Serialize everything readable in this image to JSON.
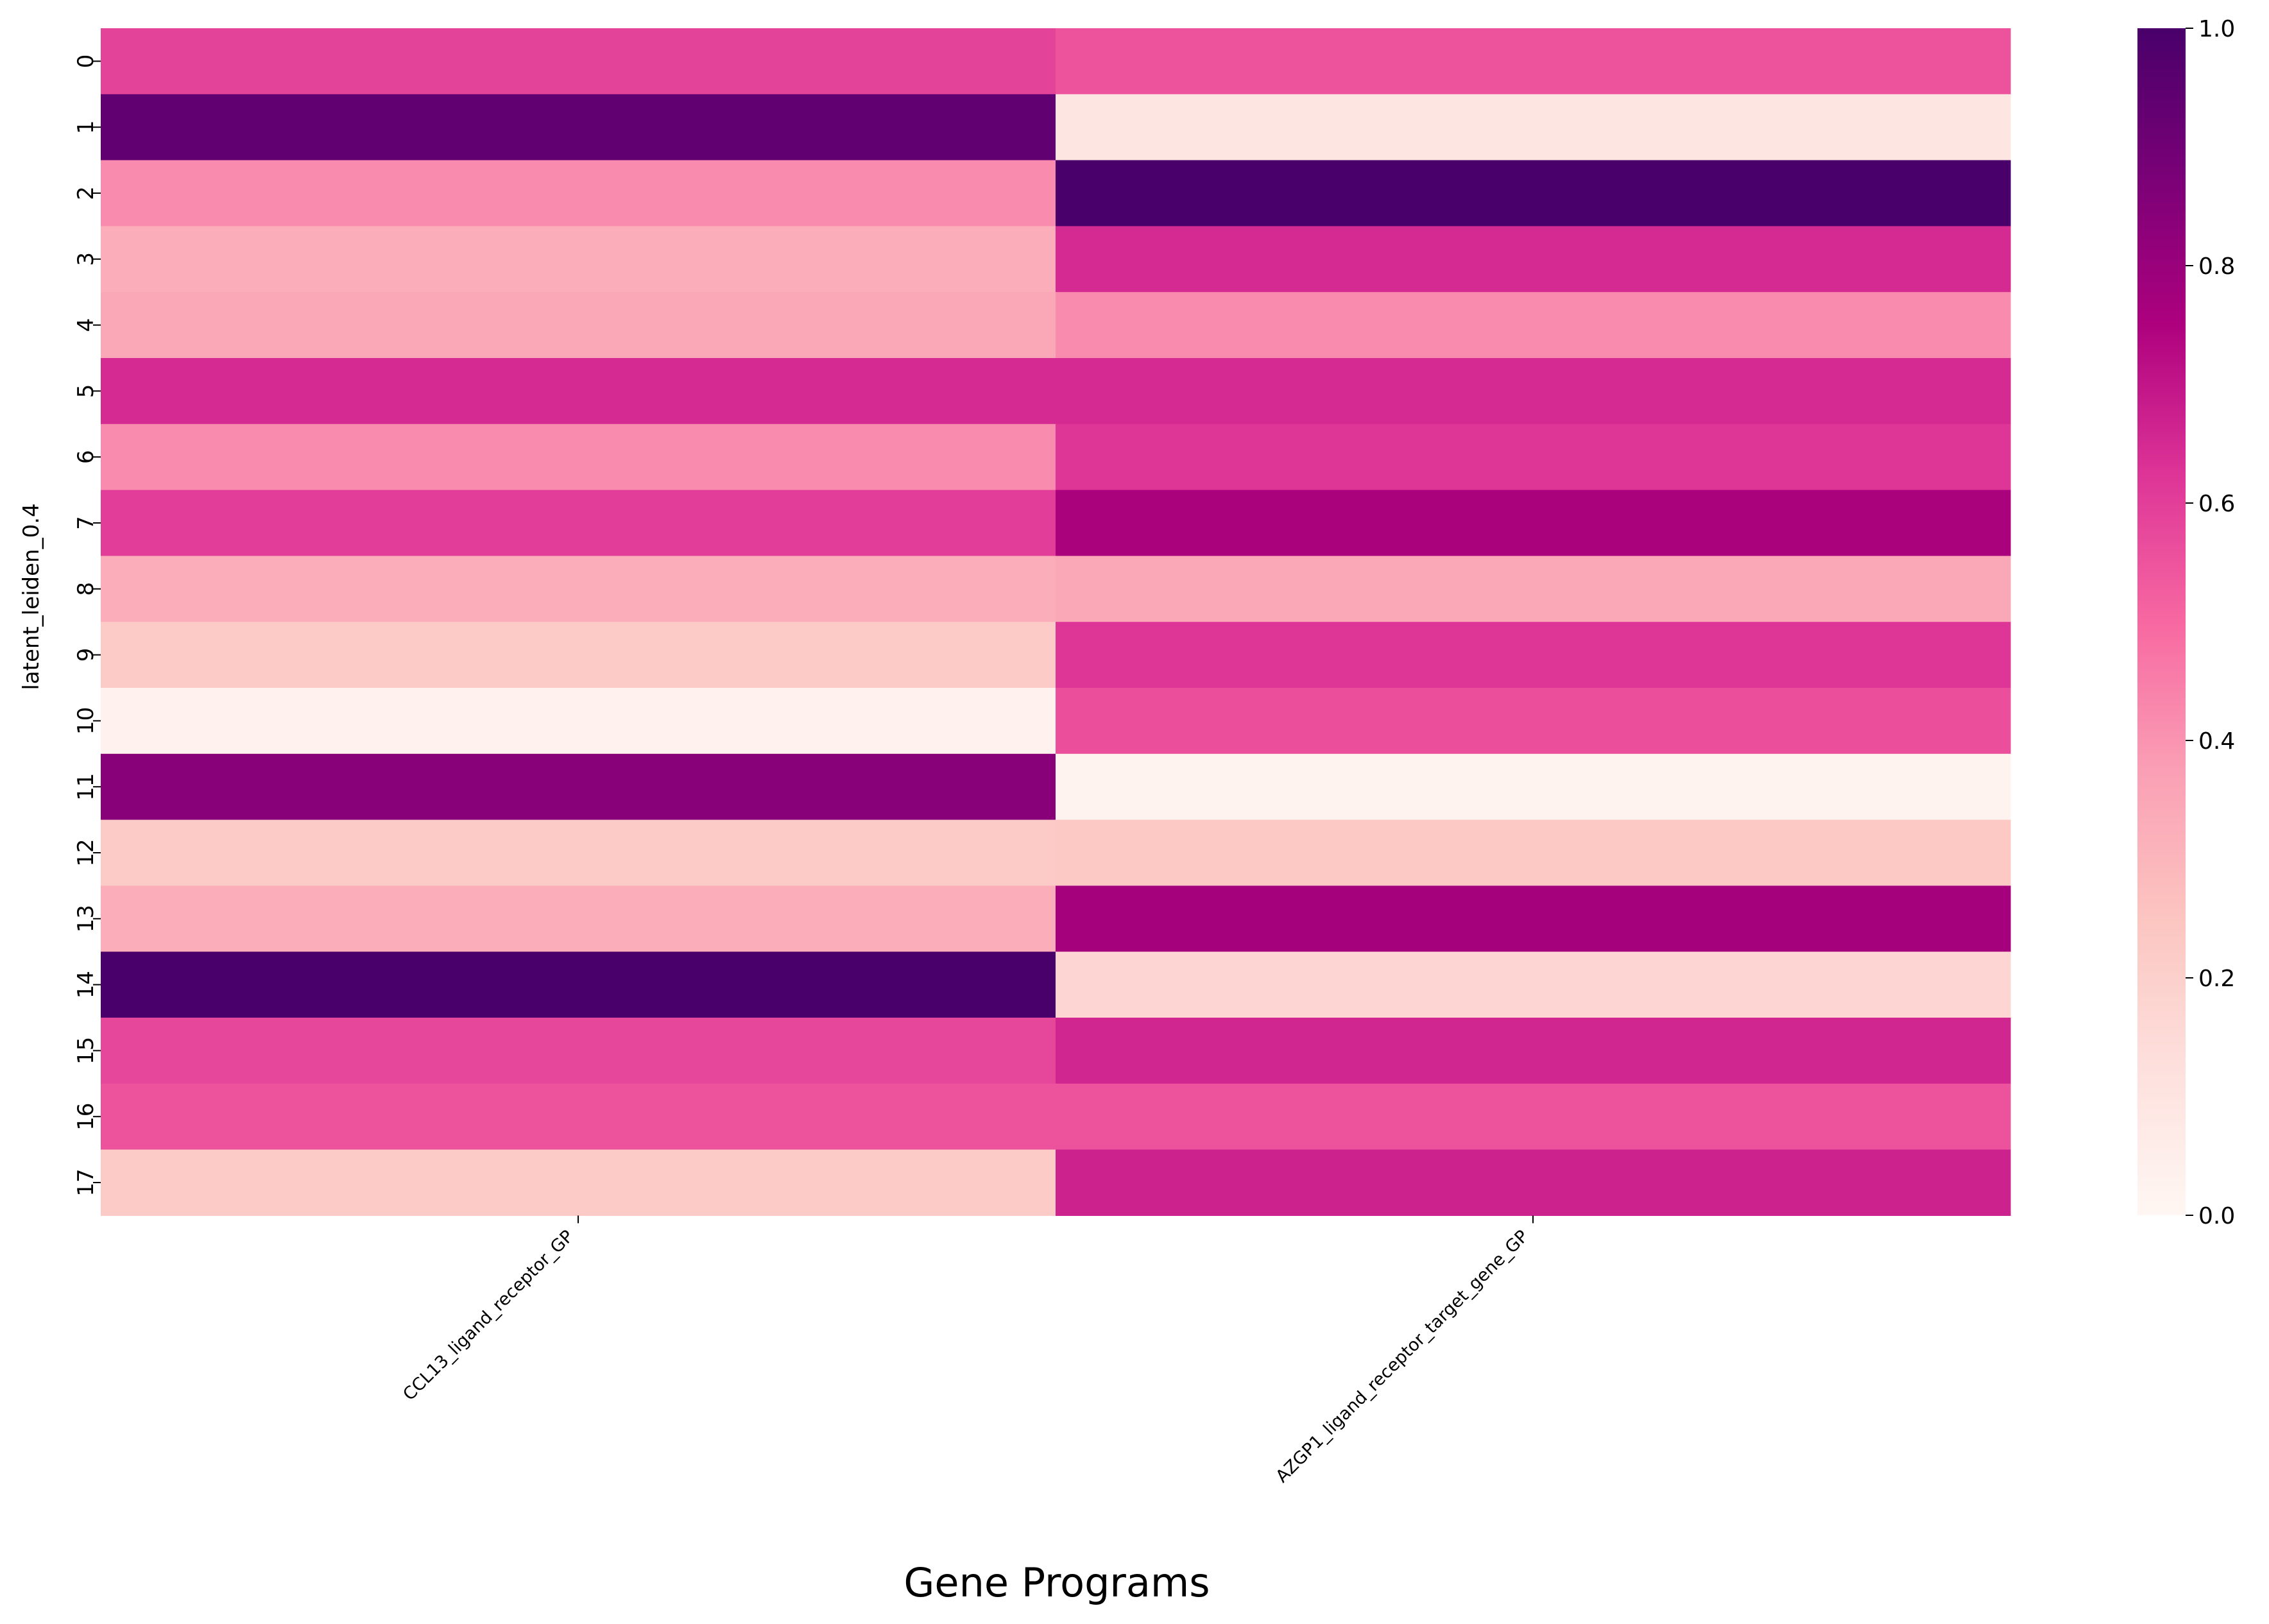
{
  "chart_data": {
    "type": "heatmap",
    "title": "",
    "xlabel": "Gene Programs",
    "ylabel": "latent_leiden_0.4",
    "x_categories": [
      "CCL13_ligand_receptor_GP",
      "AZGP1_ligand_receptor_target_gene_GP"
    ],
    "y_categories": [
      "0",
      "1",
      "2",
      "3",
      "4",
      "5",
      "6",
      "7",
      "8",
      "9",
      "10",
      "11",
      "12",
      "13",
      "14",
      "15",
      "16",
      "17"
    ],
    "values": [
      [
        0.59,
        0.55
      ],
      [
        0.94,
        0.1
      ],
      [
        0.42,
        1.0
      ],
      [
        0.33,
        0.65
      ],
      [
        0.35,
        0.42
      ],
      [
        0.65,
        0.65
      ],
      [
        0.42,
        0.62
      ],
      [
        0.6,
        0.76
      ],
      [
        0.33,
        0.35
      ],
      [
        0.22,
        0.62
      ],
      [
        0.03,
        0.56
      ],
      [
        0.84,
        0.02
      ],
      [
        0.22,
        0.23
      ],
      [
        0.33,
        0.77
      ],
      [
        1.0,
        0.17
      ],
      [
        0.58,
        0.66
      ],
      [
        0.55,
        0.55
      ],
      [
        0.22,
        0.67
      ]
    ],
    "colormap": "RdPu",
    "vmin": 0.0,
    "vmax": 1.0,
    "colorbar_ticks": [
      "0.0",
      "0.2",
      "0.4",
      "0.6",
      "0.8",
      "1.0"
    ],
    "colorbar_tick_values": [
      0.0,
      0.2,
      0.4,
      0.6,
      0.8,
      1.0
    ],
    "colorbar_colors": [
      "#fff7f3",
      "#fde0dd",
      "#fcc5c0",
      "#fa9fb5",
      "#f768a1",
      "#dd3497",
      "#ae017e",
      "#7a0177",
      "#49006a"
    ],
    "grid": false
  }
}
